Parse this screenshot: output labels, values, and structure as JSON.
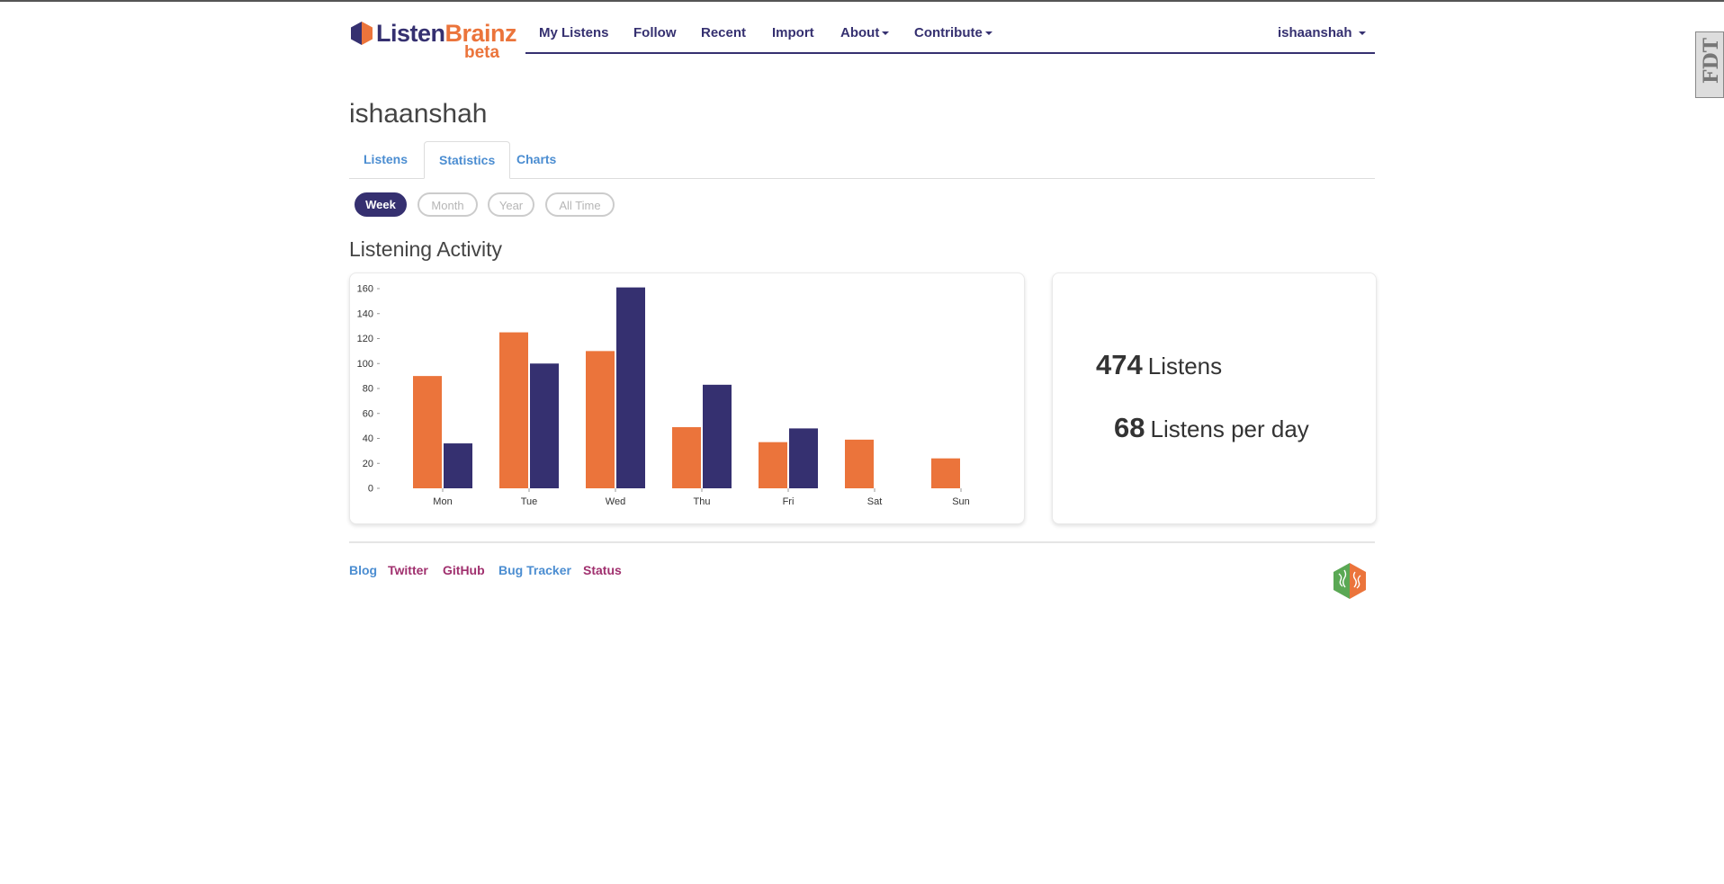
{
  "brand": {
    "listen": "Listen",
    "brainz": "Brainz",
    "beta": "beta"
  },
  "nav": {
    "my_listens": "My Listens",
    "follow": "Follow",
    "recent": "Recent",
    "import": "Import",
    "about": "About",
    "contribute": "Contribute",
    "user": "ishaanshah"
  },
  "page": {
    "username": "ishaanshah"
  },
  "tabs": [
    {
      "label": "Listens",
      "active": false
    },
    {
      "label": "Statistics",
      "active": true
    },
    {
      "label": "Charts",
      "active": false
    }
  ],
  "ranges": [
    {
      "label": "Week",
      "active": true
    },
    {
      "label": "Month",
      "active": false
    },
    {
      "label": "Year",
      "active": false
    },
    {
      "label": "All Time",
      "active": false
    }
  ],
  "section_title": "Listening Activity",
  "chart_data": {
    "type": "bar",
    "categories": [
      "Mon",
      "Tue",
      "Wed",
      "Thu",
      "Fri",
      "Sat",
      "Sun"
    ],
    "series": [
      {
        "values": [
          90,
          125,
          110,
          49,
          37,
          39,
          24
        ],
        "color": "#eb743b"
      },
      {
        "values": [
          36,
          100,
          161,
          83,
          48,
          null,
          null
        ],
        "color": "#353070"
      }
    ],
    "y_ticks": [
      0,
      20,
      40,
      60,
      80,
      100,
      120,
      140,
      160
    ],
    "ylim": [
      0,
      160
    ]
  },
  "stats": {
    "total": "474",
    "total_label": "Listens",
    "per_day": "68",
    "per_day_label": "Listens per day"
  },
  "footer": {
    "blog": "Blog",
    "twitter": "Twitter",
    "github": "GitHub",
    "bug_tracker": "Bug Tracker",
    "status": "Status"
  },
  "colors": {
    "primary": "#353070",
    "accent": "#eb743b",
    "link_blue": "#4b8dd1",
    "link_magenta": "#a0306e"
  }
}
